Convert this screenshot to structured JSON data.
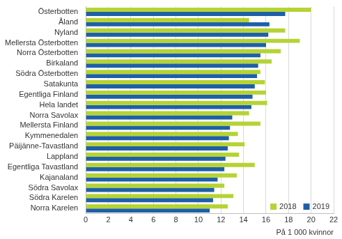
{
  "chart_data": {
    "type": "bar",
    "orientation": "horizontal",
    "categories": [
      "Österbotten",
      "Åland",
      "Nyland",
      "Mellersta Österbotten",
      "Norra Österbotten",
      "Birkaland",
      "Södra Österbotten",
      "Satakunta",
      "Egentliga Finland",
      "Hela landet",
      "Norra Savolax",
      "Mellersta Finland",
      "Kymmenedalen",
      "Päijänne-Tavastland",
      "Lappland",
      "Egentliga Tavastland",
      "Kajanaland",
      "Södra Savolax",
      "Södra Karelen",
      "Norra Karelen"
    ],
    "series": [
      {
        "name": "2018",
        "color": "#b5d334",
        "values": [
          20.0,
          14.5,
          17.7,
          19.0,
          17.3,
          16.5,
          15.5,
          15.9,
          16.0,
          16.1,
          14.5,
          15.5,
          13.5,
          14.1,
          13.6,
          15.0,
          13.4,
          12.3,
          13.1,
          12.6
        ]
      },
      {
        "name": "2019",
        "color": "#1f5fa8",
        "values": [
          17.7,
          16.3,
          16.2,
          16.0,
          15.5,
          15.3,
          15.2,
          15.0,
          14.8,
          14.7,
          13.0,
          12.8,
          12.7,
          12.6,
          12.4,
          12.3,
          11.7,
          11.4,
          11.3,
          11.0
        ]
      }
    ],
    "x_label": "På 1 000 kvinnor",
    "xlim": [
      0,
      22
    ],
    "xticks": [
      0,
      2,
      4,
      6,
      8,
      10,
      12,
      14,
      16,
      18,
      20,
      22
    ],
    "grid": true,
    "legend": "lower right"
  }
}
